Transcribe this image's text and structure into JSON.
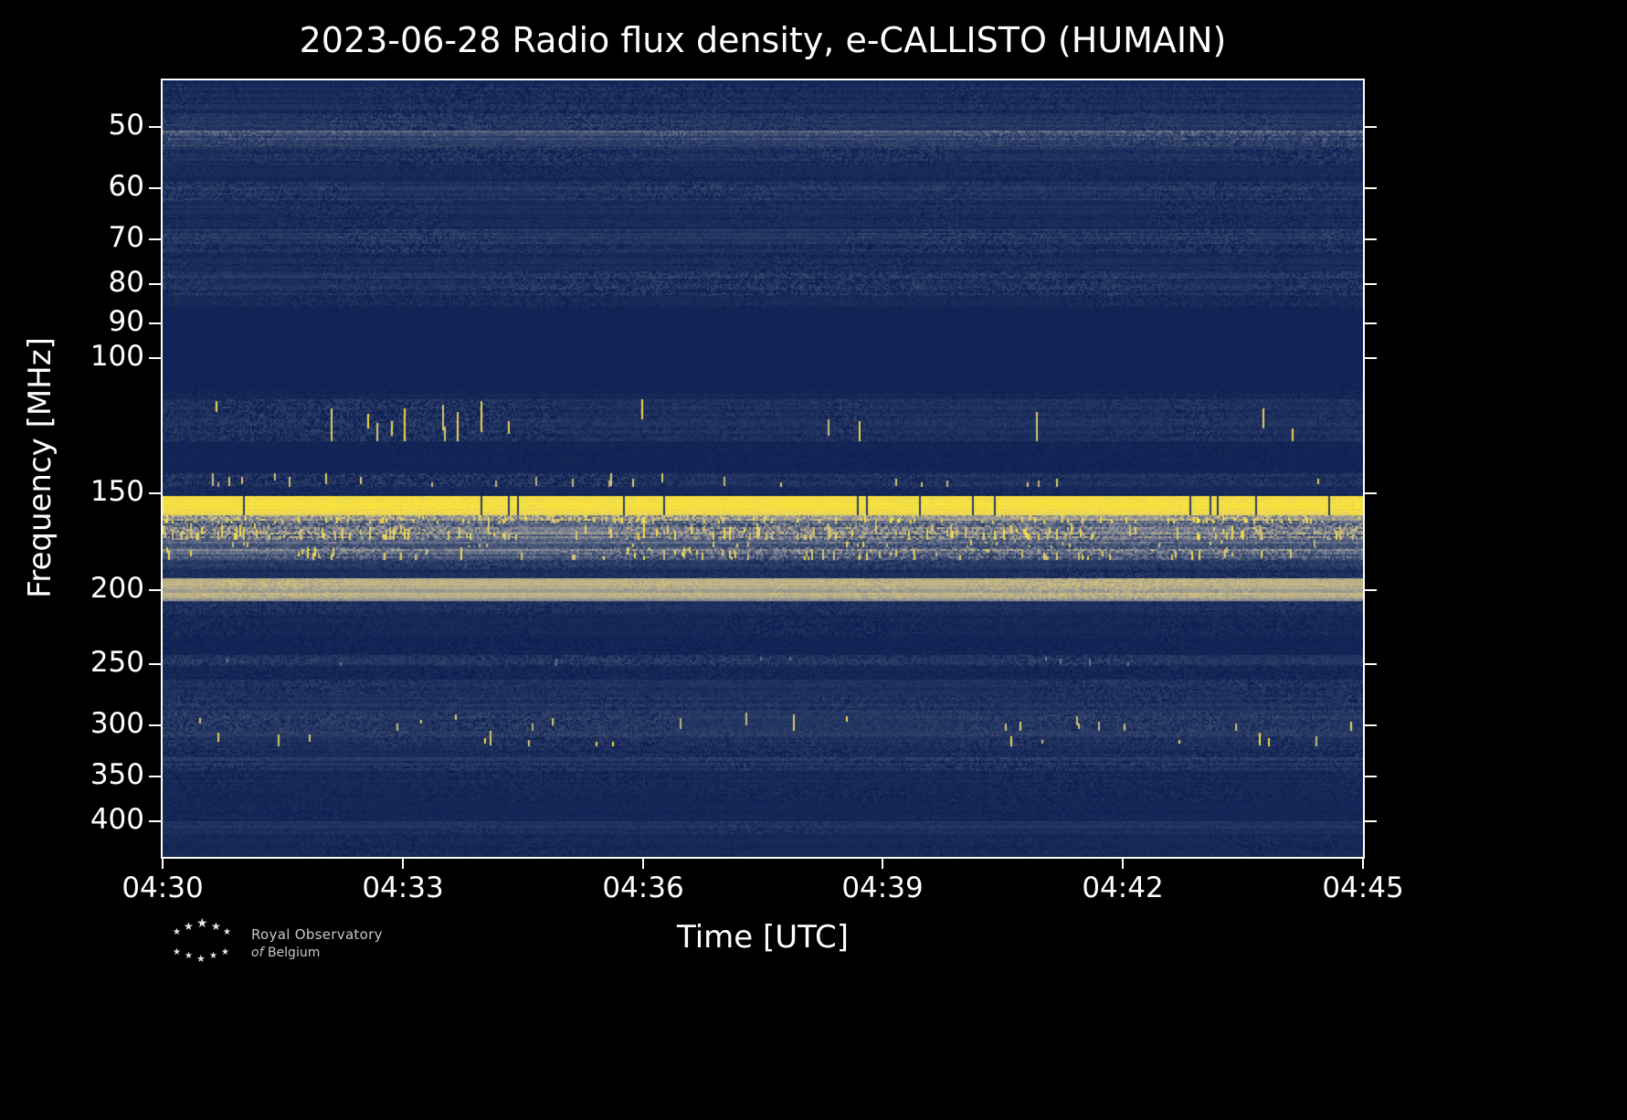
{
  "title": "2023-06-28 Radio flux density, e-CALLISTO (HUMAIN)",
  "axes": {
    "x_label": "Time [UTC]",
    "y_label": "Frequency [MHz]"
  },
  "logo": {
    "line1": "Royal Observatory",
    "line2_italic": "of",
    "line2_rest": "Belgium"
  },
  "chart_data": {
    "type": "heatmap",
    "title": "2023-06-28 Radio flux density, e-CALLISTO (HUMAIN)",
    "date": "2023-06-28",
    "station": "HUMAIN",
    "xlabel": "Time [UTC]",
    "ylabel": "Frequency [MHz]",
    "x_tick_labels": [
      "04:30",
      "04:33",
      "04:36",
      "04:39",
      "04:42",
      "04:45"
    ],
    "x_tick_interval_min": 3,
    "x_range": [
      "04:30",
      "04:45"
    ],
    "y_tick_values": [
      50,
      60,
      70,
      80,
      90,
      100,
      150,
      200,
      250,
      300,
      350,
      400
    ],
    "y_range_mhz": [
      43.5,
      445
    ],
    "y_scale": "log",
    "y_axis_inverted": true,
    "grid": false,
    "legend": "none",
    "background_level": 0.045,
    "colormap": [
      [
        0.0,
        [
          13,
          31,
          82
        ]
      ],
      [
        0.3,
        [
          58,
          76,
          112
        ]
      ],
      [
        0.5,
        [
          120,
          126,
          148
        ]
      ],
      [
        0.7,
        [
          188,
          178,
          138
        ]
      ],
      [
        0.85,
        [
          228,
          208,
          100
        ]
      ],
      [
        1.0,
        [
          255,
          232,
          46
        ]
      ]
    ],
    "notable_features": [
      "persistent bright narrowband emission ~151-160 MHz across full interval",
      "broad RFI band 160-183 MHz with dense bright vertical bursts",
      "smooth light continuum band ~193-207 MHz",
      "speckled RFI bands ~113-128 MHz and ~289-320 MHz",
      "quiet dark region ~86-110 MHz",
      "faint striped galactic/noise background 44-86 MHz"
    ],
    "bands": [
      {
        "f": [
          44,
          48
        ],
        "base": 0.09,
        "noise": 0.07,
        "stripes": 0.6
      },
      {
        "f": [
          48,
          50.5
        ],
        "base": 0.13,
        "noise": 0.1,
        "stripes": 0.7
      },
      {
        "f": [
          50.5,
          53
        ],
        "base": 0.3,
        "noise": 0.13,
        "stripes": 0.5
      },
      {
        "f": [
          53,
          56
        ],
        "base": 0.12,
        "noise": 0.08,
        "stripes": 0.6
      },
      {
        "f": [
          56,
          59
        ],
        "base": 0.07,
        "noise": 0.05,
        "stripes": 0.5
      },
      {
        "f": [
          59,
          62.5
        ],
        "base": 0.14,
        "noise": 0.1,
        "stripes": 0.7
      },
      {
        "f": [
          62.5,
          68
        ],
        "base": 0.08,
        "noise": 0.06,
        "stripes": 0.6
      },
      {
        "f": [
          68,
          73
        ],
        "base": 0.13,
        "noise": 0.09,
        "stripes": 0.7
      },
      {
        "f": [
          73,
          77
        ],
        "base": 0.08,
        "noise": 0.06,
        "stripes": 0.5
      },
      {
        "f": [
          77,
          83
        ],
        "base": 0.12,
        "noise": 0.09,
        "stripes": 0.7
      },
      {
        "f": [
          83,
          86
        ],
        "base": 0.07,
        "noise": 0.05,
        "stripes": 0.4
      },
      {
        "f": [
          86,
          110
        ],
        "base": 0.035,
        "noise": 0.012,
        "stripes": 0.1
      },
      {
        "f": [
          110,
          113
        ],
        "base": 0.05,
        "noise": 0.03,
        "stripes": 0.3
      },
      {
        "f": [
          113,
          128
        ],
        "base": 0.11,
        "noise": 0.1,
        "stripes": 0.4,
        "sp": 0.035,
        "spmax": 0.95
      },
      {
        "f": [
          128,
          141
        ],
        "base": 0.04,
        "noise": 0.02,
        "stripes": 0.2
      },
      {
        "f": [
          141,
          147
        ],
        "base": 0.13,
        "noise": 0.1,
        "stripes": 0.4,
        "sp": 0.03,
        "spmax": 0.85
      },
      {
        "f": [
          147,
          151
        ],
        "base": 0.06,
        "noise": 0.04,
        "stripes": 0.3
      },
      {
        "f": [
          151,
          160
        ],
        "base": 0.93,
        "noise": 0.05,
        "stripes": 0.06,
        "dark": 0.035
      },
      {
        "f": [
          160,
          164
        ],
        "base": 0.52,
        "noise": 0.16,
        "stripes": 0.3,
        "sp": 0.14,
        "spmax": 1.0
      },
      {
        "f": [
          164,
          172
        ],
        "base": 0.48,
        "noise": 0.16,
        "stripes": 0.35,
        "sp": 0.11,
        "spmax": 0.95
      },
      {
        "f": [
          172,
          176
        ],
        "base": 0.36,
        "noise": 0.12,
        "stripes": 0.4,
        "sp": 0.06,
        "spmax": 0.9
      },
      {
        "f": [
          176,
          183
        ],
        "base": 0.44,
        "noise": 0.14,
        "stripes": 0.4,
        "sp": 0.09,
        "spmax": 0.95
      },
      {
        "f": [
          183,
          188
        ],
        "base": 0.15,
        "noise": 0.1,
        "stripes": 0.5
      },
      {
        "f": [
          188,
          193
        ],
        "base": 0.09,
        "noise": 0.07,
        "stripes": 0.4
      },
      {
        "f": [
          193,
          207
        ],
        "base": 0.64,
        "noise": 0.06,
        "stripes": 0.18
      },
      {
        "f": [
          207,
          215
        ],
        "base": 0.11,
        "noise": 0.07,
        "stripes": 0.4
      },
      {
        "f": [
          215,
          230
        ],
        "base": 0.06,
        "noise": 0.05,
        "stripes": 0.3
      },
      {
        "f": [
          230,
          243
        ],
        "base": 0.04,
        "noise": 0.03,
        "stripes": 0.2
      },
      {
        "f": [
          243,
          251
        ],
        "base": 0.13,
        "noise": 0.09,
        "stripes": 0.5,
        "sp": 0.01,
        "spmax": 0.55
      },
      {
        "f": [
          251,
          262
        ],
        "base": 0.05,
        "noise": 0.04,
        "stripes": 0.3
      },
      {
        "f": [
          262,
          274
        ],
        "base": 0.1,
        "noise": 0.07,
        "stripes": 0.5
      },
      {
        "f": [
          274,
          289
        ],
        "base": 0.14,
        "noise": 0.09,
        "stripes": 0.5
      },
      {
        "f": [
          289,
          305
        ],
        "base": 0.14,
        "noise": 0.1,
        "stripes": 0.5,
        "sp": 0.02,
        "spmax": 0.9
      },
      {
        "f": [
          305,
          320
        ],
        "base": 0.16,
        "noise": 0.11,
        "stripes": 0.5,
        "sp": 0.035,
        "spmax": 0.95
      },
      {
        "f": [
          320,
          330
        ],
        "base": 0.09,
        "noise": 0.07,
        "stripes": 0.4
      },
      {
        "f": [
          330,
          336
        ],
        "base": 0.18,
        "noise": 0.08,
        "stripes": 0.8
      },
      {
        "f": [
          336,
          344
        ],
        "base": 0.14,
        "noise": 0.08,
        "stripes": 0.7
      },
      {
        "f": [
          344,
          360
        ],
        "base": 0.07,
        "noise": 0.05,
        "stripes": 0.4
      },
      {
        "f": [
          360,
          378
        ],
        "base": 0.06,
        "noise": 0.04,
        "stripes": 0.3
      },
      {
        "f": [
          378,
          400
        ],
        "base": 0.05,
        "noise": 0.03,
        "stripes": 0.3
      },
      {
        "f": [
          400,
          416
        ],
        "base": 0.11,
        "noise": 0.06,
        "stripes": 0.5
      },
      {
        "f": [
          416,
          444
        ],
        "base": 0.06,
        "noise": 0.04,
        "stripes": 0.3
      }
    ]
  }
}
